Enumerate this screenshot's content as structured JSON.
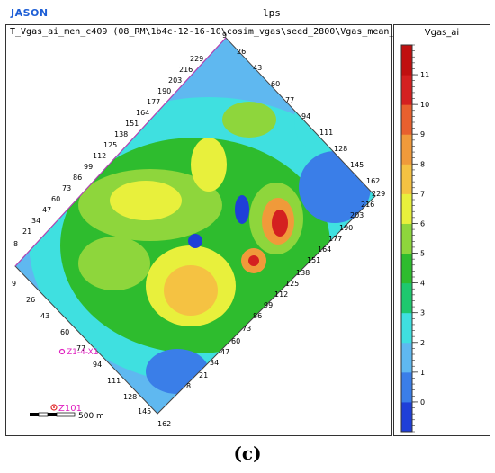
{
  "app": {
    "brand": "JASON",
    "window_title": "lps"
  },
  "map": {
    "title": "T_Vgas_ai_men_c409 (08_RM\\1b4c-12-16-10\\cosim_vgas\\seed_2800\\Vgas_mean_Tattributes.hor)",
    "inline_labels": [
      "229",
      "216",
      "203",
      "190",
      "177",
      "164",
      "151",
      "138",
      "125",
      "112",
      "99",
      "86",
      "73",
      "60",
      "47",
      "34",
      "21",
      "8"
    ],
    "crossline_labels_bottom": [
      "9",
      "26",
      "43",
      "60",
      "77",
      "94",
      "111",
      "128",
      "145",
      "162"
    ],
    "crossline_labels_top": [
      "9",
      "26",
      "43",
      "60",
      "77",
      "94",
      "111",
      "128",
      "145",
      "162"
    ],
    "inline_labels_right": [
      "229",
      "216",
      "203",
      "190",
      "177",
      "164",
      "151",
      "138",
      "125",
      "112",
      "99",
      "86",
      "73",
      "60",
      "47",
      "34",
      "21",
      "8"
    ],
    "wells": [
      {
        "name": "Z1-4-X1"
      },
      {
        "name": "Z101"
      }
    ],
    "scale_bar": {
      "label": "500 m"
    }
  },
  "legend": {
    "title": "Vgas_ai",
    "ticks": [
      "11",
      "10",
      "9",
      "8",
      "7",
      "6",
      "5",
      "4",
      "3",
      "2",
      "1",
      "0"
    ],
    "min": -1,
    "max": 12,
    "colors": [
      "#1f3fd8",
      "#3a7ee8",
      "#5fb8f0",
      "#3fe0e0",
      "#1ec86e",
      "#2ebc2e",
      "#8ed63c",
      "#e8f03c",
      "#f5c242",
      "#f09a3a",
      "#e8602e",
      "#d42020",
      "#c01010"
    ]
  },
  "caption": {
    "text": "(c)"
  }
}
